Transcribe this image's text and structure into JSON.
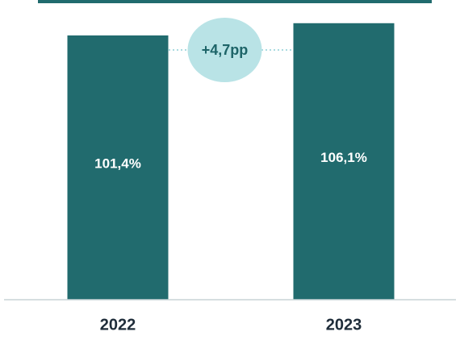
{
  "colors": {
    "bar": "#216b6e",
    "top_band": "#216b6e",
    "badge_fill": "#b9e3e6",
    "badge_text": "#1d6468",
    "connector": "#a9dbe0",
    "axis_line": "#c8d3d6",
    "label_inside": "#ffffff",
    "category_text": "#1f2d3a"
  },
  "chart_data": {
    "type": "bar",
    "categories": [
      "2022",
      "2023"
    ],
    "values": [
      101.4,
      106.1
    ],
    "data_labels": [
      "101,4%",
      "106,1%"
    ],
    "ylim": [
      0,
      115
    ],
    "grid": false,
    "legend": "none",
    "annotation": {
      "text": "+4,7pp",
      "from": "2022",
      "to": "2023"
    }
  }
}
